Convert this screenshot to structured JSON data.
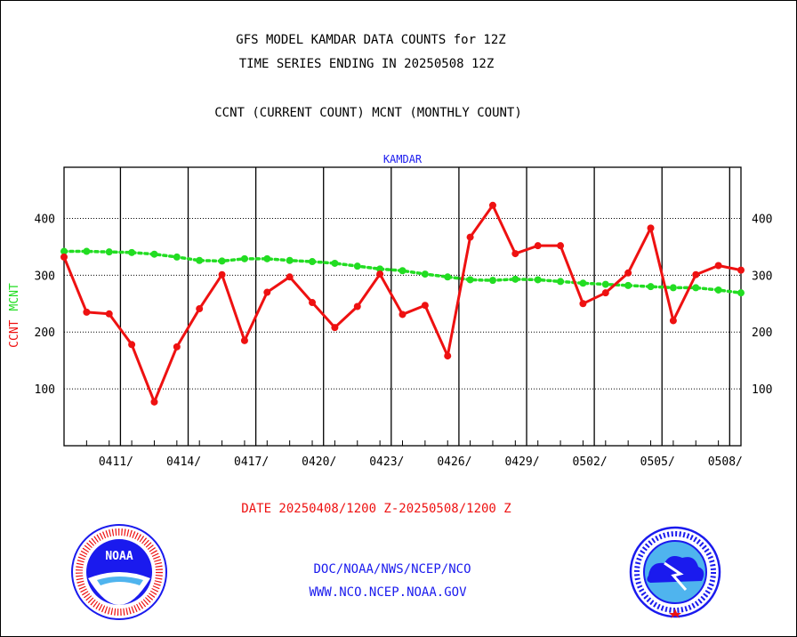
{
  "header": {
    "line1": "GFS MODEL KAMDAR DATA COUNTS for 12Z",
    "line2": "TIME SERIES ENDING IN 20250508 12Z",
    "line3": "CCNT (CURRENT COUNT) MCNT (MONTHLY COUNT)"
  },
  "footer": {
    "date_range": "DATE 20250408/1200 Z-20250508/1200 Z",
    "org_path": "DOC/NOAA/NWS/NCEP/NCO",
    "website": "WWW.NCO.NCEP.NOAA.GOV"
  },
  "chart_data": {
    "type": "line",
    "title": "KAMDAR",
    "ylabel_ccnt": "CCNT",
    "ylabel_mcnt": "MCNT",
    "ylim": [
      0,
      490
    ],
    "yticks": [
      100,
      200,
      300,
      400
    ],
    "xlim": [
      0,
      30
    ],
    "x_tick_labels": [
      {
        "x": 2.5,
        "label": "0411/"
      },
      {
        "x": 5.5,
        "label": "0414/"
      },
      {
        "x": 8.5,
        "label": "0417/"
      },
      {
        "x": 11.5,
        "label": "0420/"
      },
      {
        "x": 14.5,
        "label": "0423/"
      },
      {
        "x": 17.5,
        "label": "0426/"
      },
      {
        "x": 20.5,
        "label": "0429/"
      },
      {
        "x": 23.5,
        "label": "0502/"
      },
      {
        "x": 26.5,
        "label": "0505/"
      },
      {
        "x": 29.5,
        "label": "0508/"
      }
    ],
    "grid": true,
    "colors": {
      "ccnt": "#ee1111",
      "mcnt": "#22dd22",
      "title": "#1a1aee"
    },
    "series": [
      {
        "name": "CCNT",
        "x": [
          0,
          1,
          2,
          3,
          4,
          5,
          6,
          7,
          8,
          9,
          10,
          11,
          12,
          13,
          14,
          15,
          16,
          17,
          18,
          19,
          20,
          21,
          22,
          23,
          24,
          25,
          26,
          27,
          28,
          29,
          30
        ],
        "values": [
          332,
          235,
          232,
          178,
          77,
          174,
          241,
          301,
          185,
          270,
          297,
          252,
          208,
          245,
          302,
          231,
          247,
          158,
          367,
          423,
          338,
          352,
          352,
          250,
          269,
          304,
          383,
          220,
          301,
          317,
          309
        ]
      },
      {
        "name": "MCNT",
        "x": [
          0,
          1,
          2,
          3,
          4,
          5,
          6,
          7,
          8,
          9,
          10,
          11,
          12,
          13,
          14,
          15,
          16,
          17,
          18,
          19,
          20,
          21,
          22,
          23,
          24,
          25,
          26,
          27,
          28,
          29,
          30
        ],
        "values": [
          342,
          342,
          341,
          340,
          337,
          332,
          326,
          325,
          329,
          329,
          326,
          324,
          321,
          316,
          311,
          308,
          302,
          297,
          292,
          291,
          293,
          292,
          289,
          286,
          284,
          282,
          280,
          278,
          278,
          274,
          269
        ]
      }
    ]
  }
}
